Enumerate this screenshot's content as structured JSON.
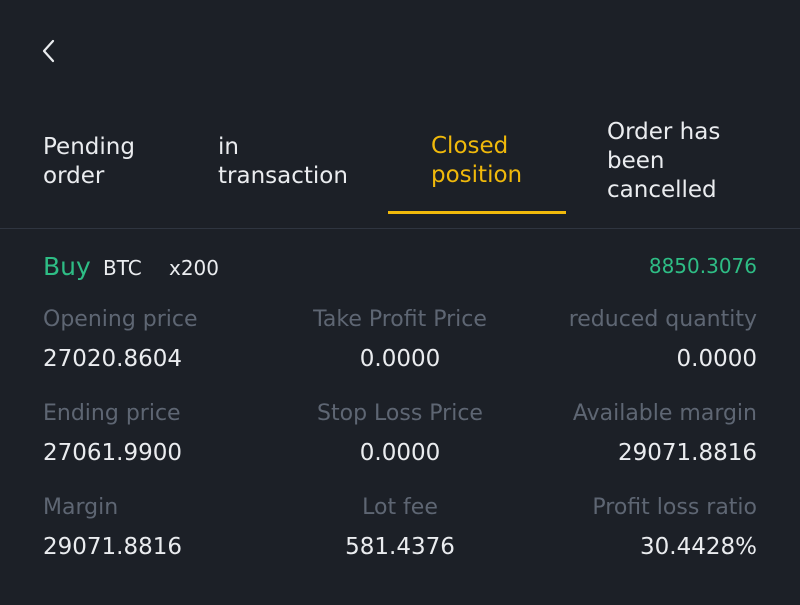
{
  "nav": {
    "back_icon": "chevron-left-icon"
  },
  "tabs": [
    {
      "label_lines": [
        "Pending",
        "order"
      ]
    },
    {
      "label_lines": [
        "in",
        "transaction"
      ]
    },
    {
      "label_lines": [
        "Closed",
        "position"
      ],
      "active": true
    },
    {
      "label_lines": [
        "Order has",
        "been",
        "cancelled"
      ]
    }
  ],
  "position": {
    "side": "Buy",
    "symbol": "BTC",
    "leverage": "x200",
    "pnl": "8850.3076",
    "fields": [
      {
        "label": "Opening price",
        "value": "27020.8604"
      },
      {
        "label": "Take Profit Price",
        "value": "0.0000"
      },
      {
        "label": "reduced quantity",
        "value": "0.0000"
      },
      {
        "label": "Ending price",
        "value": "27061.9900"
      },
      {
        "label": "Stop Loss Price",
        "value": "0.0000"
      },
      {
        "label": "Available margin",
        "value": "29071.8816"
      },
      {
        "label": "Margin",
        "value": "29071.8816"
      },
      {
        "label": "Lot fee",
        "value": "581.4376"
      },
      {
        "label": "Profit loss ratio",
        "value": "30.4428%"
      }
    ]
  },
  "colors": {
    "background": "#1c2027",
    "accent": "#f0b90b",
    "positive": "#2ebd85",
    "label": "#5e6673",
    "text": "#eaecef"
  }
}
